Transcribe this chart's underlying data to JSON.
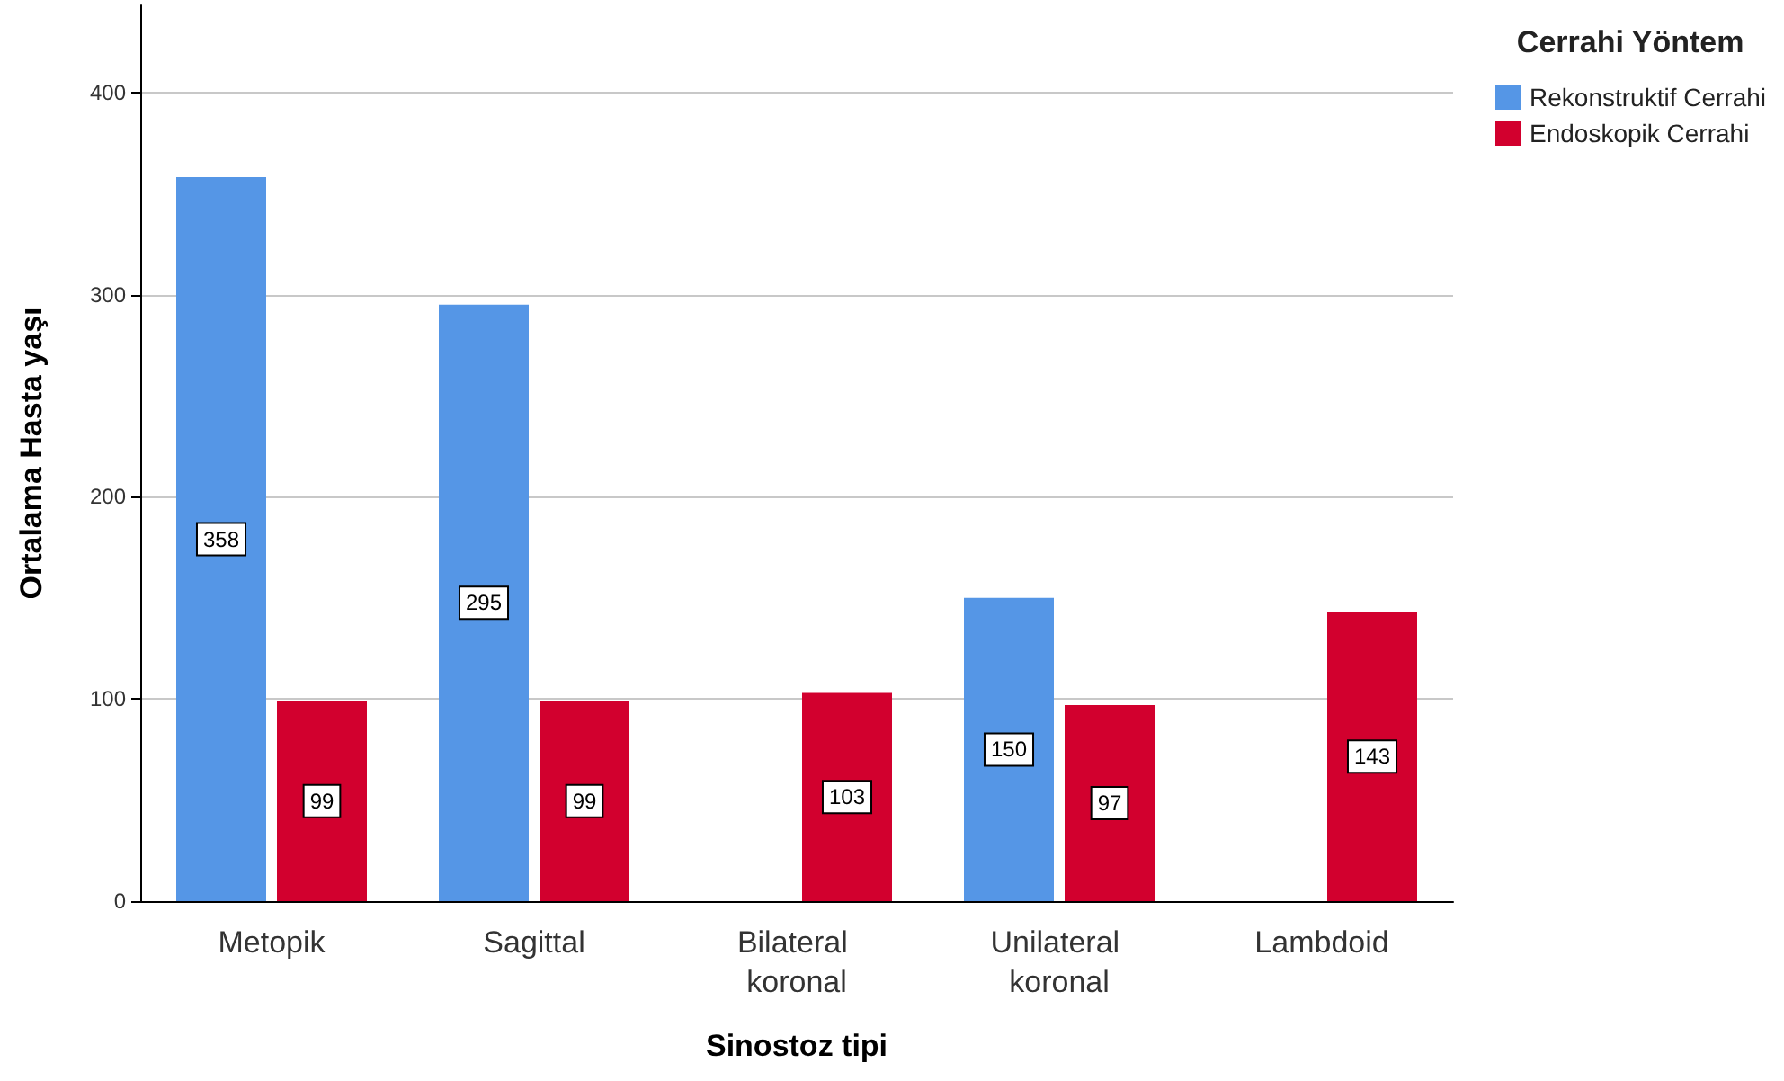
{
  "chart_data": {
    "type": "bar",
    "xlabel": "Sinostoz tipi",
    "ylabel": "Ortalama Hasta yaşı",
    "legend_title": "Cerrahi Yöntem",
    "categories": [
      "Metopik",
      "Sagittal",
      "Bilateral koronal",
      "Unilateral koronal",
      "Lambdoid"
    ],
    "series": [
      {
        "name": "Rekonstruktif Cerrahi",
        "color": "#5596e6",
        "values": [
          358,
          295,
          null,
          150,
          null
        ]
      },
      {
        "name": "Endoskopik Cerrahi",
        "color": "#d2002e",
        "values": [
          99,
          99,
          103,
          97,
          143
        ]
      }
    ],
    "ylim": [
      0,
      443
    ],
    "yticks": [
      0,
      100,
      200,
      300,
      400
    ],
    "grid": "y",
    "legend": "top right",
    "data_labels": true
  }
}
